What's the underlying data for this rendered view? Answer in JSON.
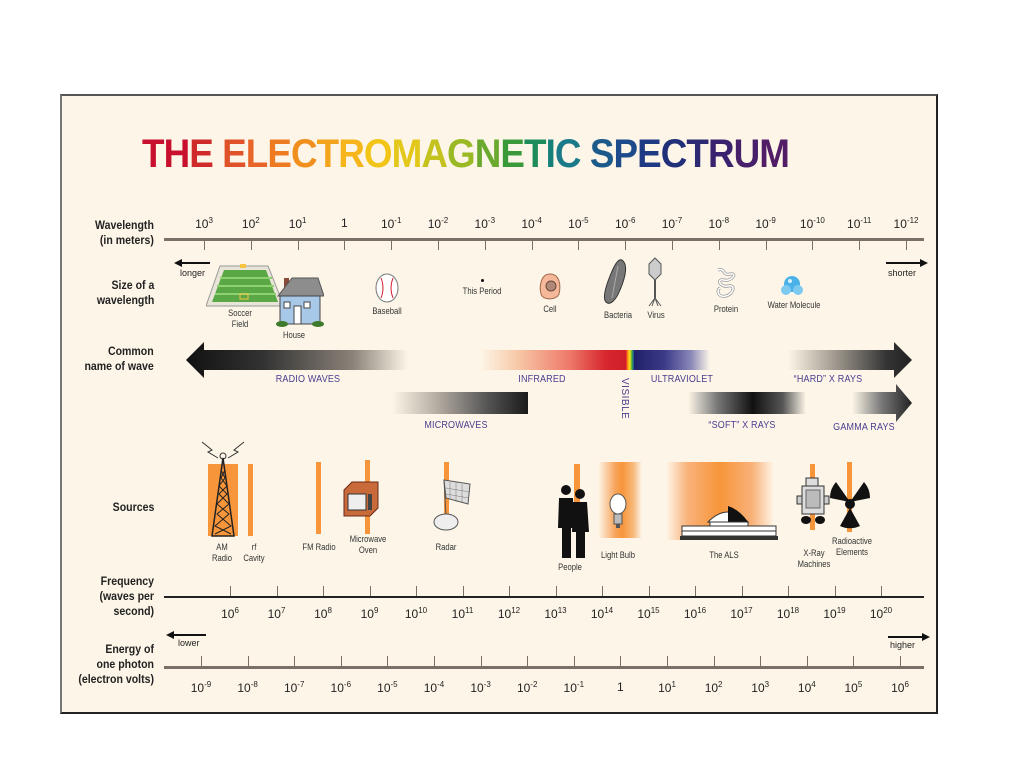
{
  "title": {
    "text": "THE ELECTROMAGNETIC SPECTRUM",
    "letters": [
      {
        "c": "T",
        "color": "#c8102e"
      },
      {
        "c": "H",
        "color": "#c8102e"
      },
      {
        "c": "E",
        "color": "#d02a2a"
      },
      {
        "c": " ",
        "color": "#000"
      },
      {
        "c": "E",
        "color": "#e0532a"
      },
      {
        "c": "L",
        "color": "#e8652a"
      },
      {
        "c": "E",
        "color": "#ee7a22"
      },
      {
        "c": "C",
        "color": "#f18f1e"
      },
      {
        "c": "T",
        "color": "#f4a31c"
      },
      {
        "c": "R",
        "color": "#f6b51a"
      },
      {
        "c": "O",
        "color": "#f2c418"
      },
      {
        "c": "M",
        "color": "#e3c71a"
      },
      {
        "c": "A",
        "color": "#c3c21e"
      },
      {
        "c": "G",
        "color": "#9ab925"
      },
      {
        "c": "N",
        "color": "#6aa82e"
      },
      {
        "c": "E",
        "color": "#3a9a3a"
      },
      {
        "c": "T",
        "color": "#1d8c5a"
      },
      {
        "c": "I",
        "color": "#148079"
      },
      {
        "c": "C",
        "color": "#1a7a8a"
      },
      {
        "c": " ",
        "color": "#000"
      },
      {
        "c": "S",
        "color": "#1d5a8c"
      },
      {
        "c": "P",
        "color": "#1c4a8a"
      },
      {
        "c": "E",
        "color": "#1e3a84"
      },
      {
        "c": "C",
        "color": "#22307a"
      },
      {
        "c": "T",
        "color": "#2d2a74"
      },
      {
        "c": "R",
        "color": "#3a236e"
      },
      {
        "c": "U",
        "color": "#46206a"
      },
      {
        "c": "M",
        "color": "#521c66"
      }
    ]
  },
  "rows": {
    "wavelength": "Wavelength\n(in meters)",
    "size": "Size of a\nwavelength",
    "common": "Common\nname of wave",
    "sources": "Sources",
    "frequency": "Frequency\n(waves per\nsecond)",
    "energy": "Energy of\none photon\n(electron volts)"
  },
  "wavelength_ticks": [
    {
      "base": "10",
      "exp": "3"
    },
    {
      "base": "10",
      "exp": "2"
    },
    {
      "base": "10",
      "exp": "1"
    },
    {
      "base": "1",
      "exp": ""
    },
    {
      "base": "10",
      "exp": "-1"
    },
    {
      "base": "10",
      "exp": "-2"
    },
    {
      "base": "10",
      "exp": "-3"
    },
    {
      "base": "10",
      "exp": "-4"
    },
    {
      "base": "10",
      "exp": "-5"
    },
    {
      "base": "10",
      "exp": "-6"
    },
    {
      "base": "10",
      "exp": "-7"
    },
    {
      "base": "10",
      "exp": "-8"
    },
    {
      "base": "10",
      "exp": "-9"
    },
    {
      "base": "10",
      "exp": "-10"
    },
    {
      "base": "10",
      "exp": "-11"
    },
    {
      "base": "10",
      "exp": "-12"
    }
  ],
  "frequency_ticks": [
    {
      "base": "10",
      "exp": "6"
    },
    {
      "base": "10",
      "exp": "7"
    },
    {
      "base": "10",
      "exp": "8"
    },
    {
      "base": "10",
      "exp": "9"
    },
    {
      "base": "10",
      "exp": "10"
    },
    {
      "base": "10",
      "exp": "11"
    },
    {
      "base": "10",
      "exp": "12"
    },
    {
      "base": "10",
      "exp": "13"
    },
    {
      "base": "10",
      "exp": "14"
    },
    {
      "base": "10",
      "exp": "15"
    },
    {
      "base": "10",
      "exp": "16"
    },
    {
      "base": "10",
      "exp": "17"
    },
    {
      "base": "10",
      "exp": "18"
    },
    {
      "base": "10",
      "exp": "19"
    },
    {
      "base": "10",
      "exp": "20"
    }
  ],
  "energy_ticks": [
    {
      "base": "10",
      "exp": "-9"
    },
    {
      "base": "10",
      "exp": "-8"
    },
    {
      "base": "10",
      "exp": "-7"
    },
    {
      "base": "10",
      "exp": "-6"
    },
    {
      "base": "10",
      "exp": "-5"
    },
    {
      "base": "10",
      "exp": "-4"
    },
    {
      "base": "10",
      "exp": "-3"
    },
    {
      "base": "10",
      "exp": "-2"
    },
    {
      "base": "10",
      "exp": "-1"
    },
    {
      "base": "1",
      "exp": ""
    },
    {
      "base": "10",
      "exp": "1"
    },
    {
      "base": "10",
      "exp": "2"
    },
    {
      "base": "10",
      "exp": "3"
    },
    {
      "base": "10",
      "exp": "4"
    },
    {
      "base": "10",
      "exp": "5"
    },
    {
      "base": "10",
      "exp": "6"
    }
  ],
  "arrows": {
    "longer": "longer",
    "shorter": "shorter",
    "lower": "lower",
    "higher": "higher"
  },
  "size_objects": [
    {
      "label": "Soccer\nField",
      "icon": "soccer-field-icon"
    },
    {
      "label": "House",
      "icon": "house-icon"
    },
    {
      "label": "Baseball",
      "icon": "baseball-icon"
    },
    {
      "label": "This Period",
      "icon": "period-dot-icon"
    },
    {
      "label": "Cell",
      "icon": "cell-icon"
    },
    {
      "label": "Bacteria",
      "icon": "bacteria-icon"
    },
    {
      "label": "Virus",
      "icon": "virus-icon"
    },
    {
      "label": "Protein",
      "icon": "protein-icon"
    },
    {
      "label": "Water Molecule",
      "icon": "water-molecule-icon"
    }
  ],
  "wave_names": {
    "radio": "RADIO WAVES",
    "microwaves": "MICROWAVES",
    "infrared": "INFRARED",
    "visible": "VISIBLE",
    "ultraviolet": "ULTRAVIOLET",
    "soft_xrays": "“SOFT” X RAYS",
    "hard_xrays": "“HARD” X RAYS",
    "gamma": "GAMMA RAYS"
  },
  "sources": [
    {
      "label": "AM\nRadio",
      "icon": "radio-tower-icon"
    },
    {
      "label": "rf\nCavity",
      "icon": "rf-cavity-icon"
    },
    {
      "label": "FM Radio",
      "icon": "fm-radio-icon"
    },
    {
      "label": "Microwave\nOven",
      "icon": "microwave-oven-icon"
    },
    {
      "label": "Radar",
      "icon": "radar-dish-icon"
    },
    {
      "label": "People",
      "icon": "people-icon"
    },
    {
      "label": "Light Bulb",
      "icon": "light-bulb-icon"
    },
    {
      "label": "The ALS",
      "icon": "als-building-icon"
    },
    {
      "label": "X-Ray\nMachines",
      "icon": "xray-machine-icon"
    },
    {
      "label": "Radioactive\nElements",
      "icon": "radioactive-icon"
    }
  ],
  "colors": {
    "background": "#fdf6e8",
    "axis": "#7a7068",
    "source_orange": "#f7953a",
    "wave_label": "#4a3d8f",
    "infrared_red": "#d7262e",
    "ultraviolet_blue": "#2b2a78"
  }
}
